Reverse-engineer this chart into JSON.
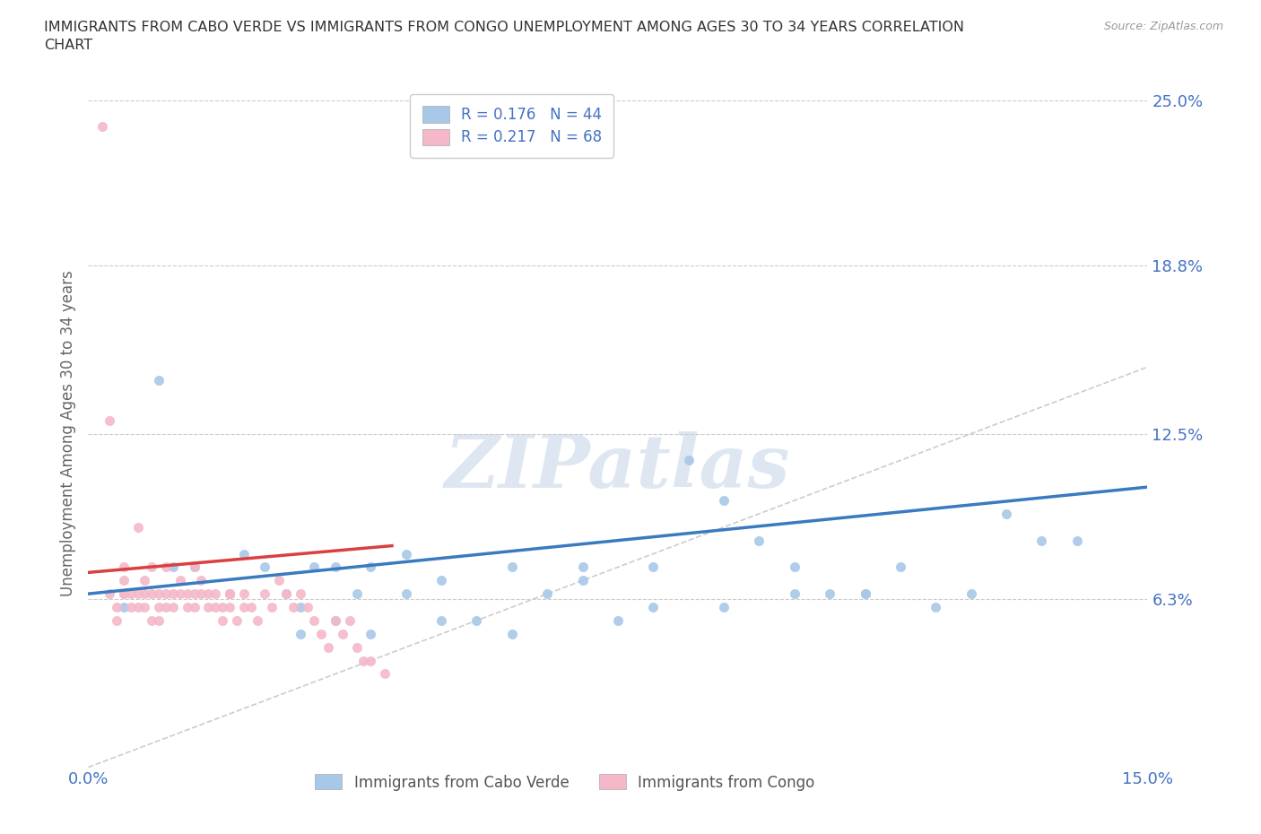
{
  "title": "IMMIGRANTS FROM CABO VERDE VS IMMIGRANTS FROM CONGO UNEMPLOYMENT AMONG AGES 30 TO 34 YEARS CORRELATION\nCHART",
  "source_text": "Source: ZipAtlas.com",
  "ylabel": "Unemployment Among Ages 30 to 34 years",
  "xlim": [
    0.0,
    0.15
  ],
  "ylim": [
    0.0,
    0.25
  ],
  "ytick_values": [
    0.0,
    0.063,
    0.125,
    0.188,
    0.25
  ],
  "ytick_labels": [
    "",
    "6.3%",
    "12.5%",
    "18.8%",
    "25.0%"
  ],
  "grid_color": "#cccccc",
  "background_color": "#ffffff",
  "cabo_verde_color": "#a8c8e8",
  "congo_color": "#f4b8c8",
  "cabo_verde_line_color": "#3a7bbf",
  "congo_line_color": "#d94040",
  "diagonal_color": "#cccccc",
  "legend_r_cabo": "R = 0.176",
  "legend_n_cabo": "N = 44",
  "legend_r_congo": "R = 0.217",
  "legend_n_congo": "N = 68",
  "watermark": "ZIPatlas",
  "cabo_verde_x": [
    0.005,
    0.01,
    0.012,
    0.015,
    0.02,
    0.022,
    0.025,
    0.028,
    0.03,
    0.032,
    0.035,
    0.038,
    0.04,
    0.045,
    0.045,
    0.05,
    0.055,
    0.06,
    0.065,
    0.07,
    0.075,
    0.08,
    0.085,
    0.09,
    0.095,
    0.1,
    0.105,
    0.11,
    0.115,
    0.12,
    0.125,
    0.13,
    0.135,
    0.14,
    0.03,
    0.035,
    0.04,
    0.05,
    0.06,
    0.07,
    0.08,
    0.09,
    0.1,
    0.11
  ],
  "cabo_verde_y": [
    0.06,
    0.145,
    0.075,
    0.075,
    0.065,
    0.08,
    0.075,
    0.065,
    0.06,
    0.075,
    0.075,
    0.065,
    0.075,
    0.08,
    0.065,
    0.07,
    0.055,
    0.075,
    0.065,
    0.075,
    0.055,
    0.075,
    0.115,
    0.1,
    0.085,
    0.075,
    0.065,
    0.065,
    0.075,
    0.06,
    0.065,
    0.095,
    0.085,
    0.085,
    0.05,
    0.055,
    0.05,
    0.055,
    0.05,
    0.07,
    0.06,
    0.06,
    0.065,
    0.065
  ],
  "congo_x": [
    0.002,
    0.003,
    0.004,
    0.004,
    0.005,
    0.005,
    0.005,
    0.006,
    0.006,
    0.007,
    0.007,
    0.008,
    0.008,
    0.008,
    0.009,
    0.009,
    0.01,
    0.01,
    0.01,
    0.011,
    0.011,
    0.012,
    0.012,
    0.013,
    0.013,
    0.014,
    0.014,
    0.015,
    0.015,
    0.016,
    0.016,
    0.017,
    0.017,
    0.018,
    0.018,
    0.019,
    0.019,
    0.02,
    0.02,
    0.021,
    0.022,
    0.022,
    0.023,
    0.024,
    0.025,
    0.026,
    0.027,
    0.028,
    0.029,
    0.03,
    0.031,
    0.032,
    0.033,
    0.034,
    0.035,
    0.036,
    0.037,
    0.038,
    0.039,
    0.04,
    0.042,
    0.003,
    0.005,
    0.007,
    0.009,
    0.011,
    0.015,
    0.02
  ],
  "congo_y": [
    0.24,
    0.065,
    0.055,
    0.06,
    0.065,
    0.07,
    0.065,
    0.06,
    0.065,
    0.06,
    0.065,
    0.065,
    0.06,
    0.07,
    0.065,
    0.055,
    0.06,
    0.065,
    0.055,
    0.06,
    0.065,
    0.06,
    0.065,
    0.07,
    0.065,
    0.06,
    0.065,
    0.065,
    0.06,
    0.065,
    0.07,
    0.065,
    0.06,
    0.065,
    0.06,
    0.055,
    0.06,
    0.065,
    0.06,
    0.055,
    0.06,
    0.065,
    0.06,
    0.055,
    0.065,
    0.06,
    0.07,
    0.065,
    0.06,
    0.065,
    0.06,
    0.055,
    0.05,
    0.045,
    0.055,
    0.05,
    0.055,
    0.045,
    0.04,
    0.04,
    0.035,
    0.13,
    0.075,
    0.09,
    0.075,
    0.075,
    0.075,
    0.065
  ]
}
